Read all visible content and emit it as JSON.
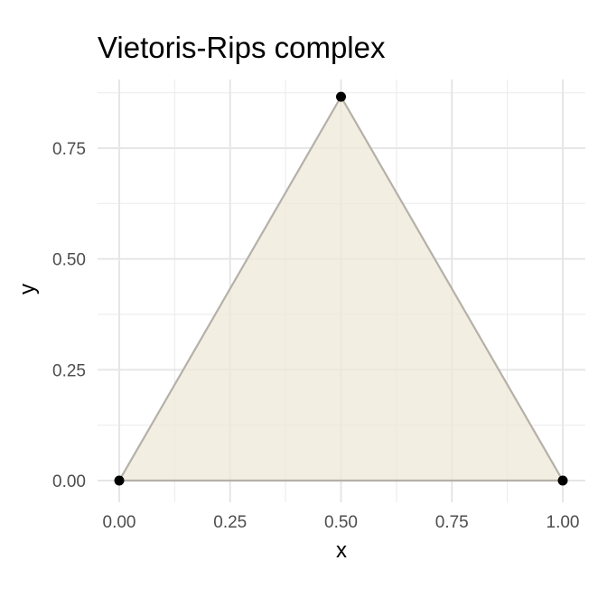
{
  "chart_data": {
    "type": "scatter",
    "title": "Vietoris-Rips complex",
    "xlabel": "x",
    "ylabel": "y",
    "xlim": [
      -0.04,
      1.04
    ],
    "ylim": [
      -0.04,
      0.9
    ],
    "x_ticks": [
      "0.00",
      "0.25",
      "0.50",
      "0.75",
      "1.00"
    ],
    "y_ticks": [
      "0.00",
      "0.25",
      "0.50",
      "0.75"
    ],
    "points": [
      {
        "x": 0.0,
        "y": 0.0
      },
      {
        "x": 1.0,
        "y": 0.0
      },
      {
        "x": 0.5,
        "y": 0.866
      }
    ],
    "edges": [
      [
        0,
        1
      ],
      [
        1,
        2
      ],
      [
        2,
        0
      ]
    ],
    "triangles": [
      [
        0,
        1,
        2
      ]
    ],
    "grid": true,
    "legend": "none",
    "colors": {
      "fill": "#efe8d8",
      "edge": "#b5b0a8",
      "point": "#000000"
    }
  }
}
